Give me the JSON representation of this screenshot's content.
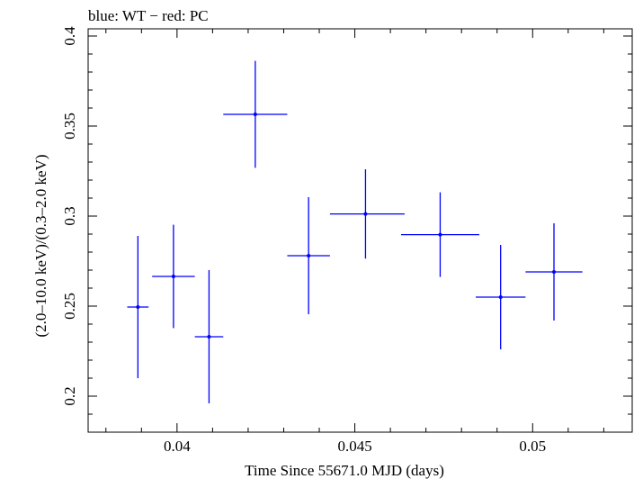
{
  "header": {
    "title": "blue: WT − red: PC"
  },
  "chart_data": {
    "type": "scatter",
    "title": "blue: WT − red: PC",
    "xlabel": "Time Since 55671.0 MJD (days)",
    "ylabel": "(2.0–10.0 keV)/(0.3–2.0 keV)",
    "xlim": [
      0.0375,
      0.0528
    ],
    "ylim": [
      0.18,
      0.404
    ],
    "x_ticks": [
      0.04,
      0.045,
      0.05
    ],
    "x_tick_labels": [
      "0.04",
      "0.045",
      "0.05"
    ],
    "y_ticks": [
      0.2,
      0.25,
      0.3,
      0.35,
      0.4
    ],
    "y_tick_labels": [
      "0.2",
      "0.25",
      "0.3",
      "0.35",
      "0.4"
    ],
    "grid": false,
    "colors": {
      "WT": "#0000ff",
      "PC": "#ff0000"
    },
    "series": [
      {
        "name": "WT",
        "color": "#0000ff",
        "points": [
          {
            "x": 0.0389,
            "y": 0.2495,
            "xerr_lo": 0.0003,
            "xerr_hi": 0.0003,
            "yerr_lo": 0.0395,
            "yerr_hi": 0.0395
          },
          {
            "x": 0.0399,
            "y": 0.2665,
            "xerr_lo": 0.0006,
            "xerr_hi": 0.0006,
            "yerr_lo": 0.0287,
            "yerr_hi": 0.0287
          },
          {
            "x": 0.0409,
            "y": 0.233,
            "xerr_lo": 0.0004,
            "xerr_hi": 0.0004,
            "yerr_lo": 0.037,
            "yerr_hi": 0.037
          },
          {
            "x": 0.0422,
            "y": 0.3565,
            "xerr_lo": 0.0009,
            "xerr_hi": 0.0009,
            "yerr_lo": 0.0297,
            "yerr_hi": 0.0297
          },
          {
            "x": 0.0437,
            "y": 0.278,
            "xerr_lo": 0.0006,
            "xerr_hi": 0.0006,
            "yerr_lo": 0.0325,
            "yerr_hi": 0.0325
          },
          {
            "x": 0.0453,
            "y": 0.3012,
            "xerr_lo": 0.001,
            "xerr_hi": 0.0011,
            "yerr_lo": 0.0248,
            "yerr_hi": 0.0248
          },
          {
            "x": 0.0474,
            "y": 0.2897,
            "xerr_lo": 0.0011,
            "xerr_hi": 0.0011,
            "yerr_lo": 0.0235,
            "yerr_hi": 0.0235
          },
          {
            "x": 0.0491,
            "y": 0.255,
            "xerr_lo": 0.0007,
            "xerr_hi": 0.0007,
            "yerr_lo": 0.029,
            "yerr_hi": 0.029
          },
          {
            "x": 0.0506,
            "y": 0.269,
            "xerr_lo": 0.0008,
            "xerr_hi": 0.0008,
            "yerr_lo": 0.027,
            "yerr_hi": 0.027
          }
        ]
      }
    ]
  }
}
